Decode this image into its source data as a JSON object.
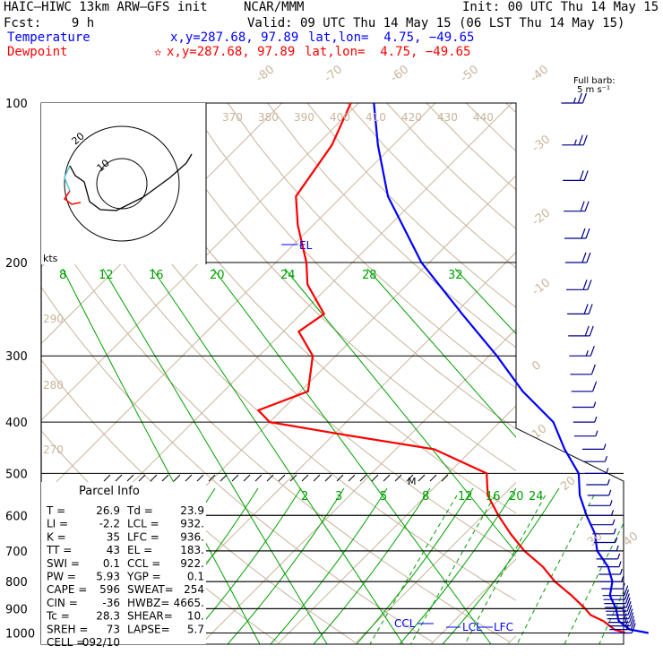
{
  "header": {
    "model": "HAIC–HIWC 13km ARW–GFS init",
    "institution": "NCAR/MMM",
    "init": "Init: 00 UTC Thu 14 May 15",
    "forecast": "Fcst:    9 h",
    "valid": "Valid: 09 UTC Thu 14 May 15 (06 LST Thu 14 May 15)"
  },
  "legend": {
    "temperature": {
      "label": "Temperature",
      "xy": "x,y=287.68, 97.89",
      "latlon": "lat,lon=  4.75, −49.65",
      "color": "#0000ff"
    },
    "dewpoint": {
      "label": "Dewpoint",
      "xy": "x,y=287.68, 97.89",
      "latlon": "lat,lon=  4.75, −49.65",
      "color": "#ff0000"
    }
  },
  "colors": {
    "temperature": "#0000ff",
    "dewpoint": "#ff0000",
    "grid": "#c8b49a",
    "mixing": "#00a000",
    "isobar": "#000000"
  },
  "wind_box": {
    "title": "Full barb:",
    "subtitle": "5 m s⁻¹"
  },
  "hodograph": {
    "units": "kts",
    "ring_labels": [
      "10",
      "20"
    ]
  },
  "parcel_info": {
    "title": "Parcel Info",
    "rows": [
      [
        "T   =",
        "26.9",
        "Td =",
        "23.9"
      ],
      [
        "LI  =",
        "-2.2",
        "LCL =",
        "932."
      ],
      [
        "K   =",
        "35",
        "LFC =",
        "936."
      ],
      [
        "TT  =",
        "43",
        "EL  =",
        "183."
      ],
      [
        "SWI =",
        "0.1",
        "CCL =",
        "922."
      ],
      [
        "PW  =",
        "5.93",
        "YGP =",
        "0.1"
      ],
      [
        "CAPE =",
        "596",
        "SWEAT=",
        "254"
      ],
      [
        "CIN =",
        "-36",
        "HWBZ=",
        "4665."
      ],
      [
        "Tc  =",
        "28.3",
        "SHEAR=",
        "10."
      ],
      [
        "SREH =",
        "73",
        "LAPSE=",
        "5.7"
      ],
      [
        "CELL =",
        "092/10",
        "",
        ""
      ]
    ]
  },
  "level_labels": {
    "el": "EL",
    "ccl": "CCL",
    "lcl": "LCL",
    "lfc": "LFC",
    "m": "M"
  },
  "chart_data": {
    "type": "line",
    "pressure_levels": [
      100,
      200,
      300,
      400,
      500,
      600,
      700,
      800,
      900,
      1000
    ],
    "isotherm_labels": [
      "-80",
      "-70",
      "-60",
      "-50",
      "-40",
      "-30",
      "-20",
      "-10",
      "0",
      "10",
      "20",
      "30",
      "40"
    ],
    "theta_labels_top": [
      "370",
      "380",
      "390",
      "400",
      "410",
      "420",
      "430",
      "440"
    ],
    "theta_labels_left": [
      "290",
      "280",
      "270"
    ],
    "theta_e_labels": [
      "8",
      "12",
      "16",
      "20",
      "24",
      "28",
      "32"
    ],
    "mixing_ratio_labels": [
      "2",
      "3",
      "5",
      "8",
      "12",
      "16",
      "20",
      "24"
    ],
    "series": [
      {
        "name": "Temperature",
        "p": [
          1000,
          985,
          950,
          925,
          900,
          850,
          800,
          750,
          700,
          650,
          600,
          550,
          500,
          450,
          400,
          350,
          300,
          250,
          200,
          150,
          120,
          100
        ],
        "t": [
          26.9,
          24,
          21.5,
          20.5,
          19.5,
          17,
          15.5,
          13,
          9.5,
          7,
          3.5,
          0,
          -3,
          -8,
          -13,
          -21,
          -29,
          -39,
          -51,
          -64,
          -72,
          -78
        ]
      },
      {
        "name": "Dewpoint",
        "p": [
          1000,
          985,
          950,
          925,
          900,
          850,
          800,
          750,
          700,
          650,
          600,
          550,
          500,
          450,
          420,
          400,
          380,
          350,
          300,
          270,
          250,
          220,
          200,
          170,
          150,
          120,
          100
        ],
        "t": [
          23.9,
          22,
          19.5,
          17,
          15.5,
          12,
          8,
          4.5,
          0,
          -4,
          -8,
          -12,
          -15,
          -25,
          -40,
          -50,
          -53,
          -49,
          -53,
          -58,
          -57,
          -63,
          -66,
          -72,
          -76,
          -78,
          -81
        ]
      }
    ],
    "wind_barbs": {
      "p": [
        1000,
        985,
        970,
        955,
        940,
        925,
        910,
        895,
        880,
        865,
        850,
        825,
        800,
        775,
        750,
        725,
        700,
        675,
        650,
        625,
        600,
        575,
        550,
        525,
        500,
        475,
        450,
        425,
        400,
        375,
        350,
        325,
        300,
        275,
        250,
        225,
        200,
        180,
        160,
        140,
        120,
        100
      ],
      "speed_ms": [
        7,
        8,
        9,
        9,
        9,
        8,
        8,
        7,
        6,
        5,
        5,
        4,
        4,
        4,
        4,
        4,
        4,
        4,
        4,
        4,
        4,
        4,
        4,
        4,
        4,
        4,
        4,
        4,
        4,
        4,
        5,
        6,
        9,
        10,
        10,
        11,
        12,
        11,
        11,
        12,
        13,
        14
      ],
      "direction_deg": [
        80,
        80,
        85,
        85,
        90,
        90,
        90,
        90,
        95,
        95,
        100,
        110,
        120,
        130,
        140,
        150,
        160,
        170,
        180,
        190,
        200,
        210,
        220,
        230,
        240,
        250,
        250,
        260,
        260,
        250,
        240,
        200,
        110,
        100,
        95,
        95,
        95,
        95,
        90,
        90,
        90,
        90
      ]
    }
  }
}
